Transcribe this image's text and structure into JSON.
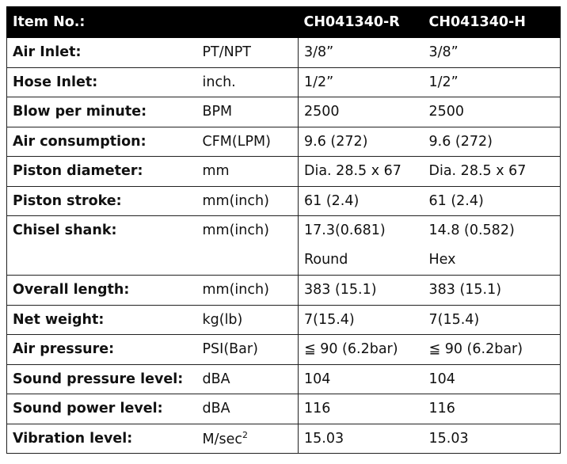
{
  "header": {
    "item_label": "Item No.:",
    "unit": "",
    "model_r": "CH041340-R",
    "model_h": "CH041340-H"
  },
  "rows": [
    {
      "label": "Air Inlet:",
      "unit": "PT/NPT",
      "r": "3/8”",
      "h": "3/8”"
    },
    {
      "label": "Hose Inlet:",
      "unit": "inch.",
      "r": "1/2”",
      "h": "1/2”"
    },
    {
      "label": "Blow per minute:",
      "unit": "BPM",
      "r": "2500",
      "h": "2500"
    },
    {
      "label": "Air consumption:",
      "unit": "CFM(LPM)",
      "r": "9.6 (272)",
      "h": "9.6 (272)"
    },
    {
      "label": "Piston diameter:",
      "unit": "mm",
      "r": "Dia. 28.5 x 67",
      "h": "Dia. 28.5 x 67"
    },
    {
      "label": "Piston stroke:",
      "unit": "mm(inch)",
      "r": "61 (2.4)",
      "h": "61 (2.4)"
    },
    {
      "label": "Chisel shank:",
      "unit": "mm(inch)",
      "r": "17.3(0.681)",
      "h": "14.8 (0.582)",
      "r2": "Round",
      "h2": "Hex"
    },
    {
      "label": "Overall length:",
      "unit": "mm(inch)",
      "r": "383 (15.1)",
      "h": "383 (15.1)"
    },
    {
      "label": "Net weight:",
      "unit": "kg(lb)",
      "r": "7(15.4)",
      "h": "7(15.4)"
    },
    {
      "label": "Air pressure:",
      "unit": "PSI(Bar)",
      "r": "≦ 90 (6.2bar)",
      "h": "≦ 90 (6.2bar)"
    },
    {
      "label": "Sound pressure level:",
      "unit": "dBA",
      "r": "104",
      "h": "104"
    },
    {
      "label": "Sound power level:",
      "unit": "dBA",
      "r": "116",
      "h": "116"
    },
    {
      "label": "Vibration level:",
      "unit": "M/sec",
      "unit_sup": "2",
      "r": "15.03",
      "h": "15.03"
    }
  ]
}
